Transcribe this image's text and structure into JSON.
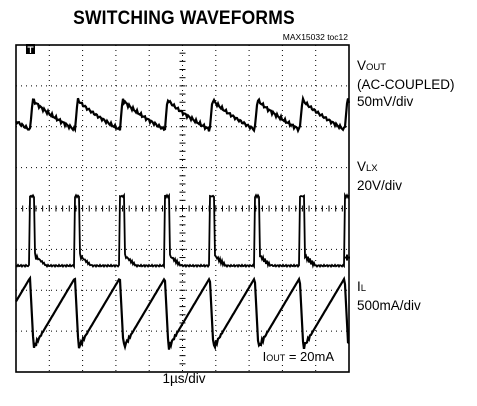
{
  "title": "SWITCHING WAVEFORMS",
  "figure_ref": "MAX15032 toc12",
  "x_scale_label": "1µs/div",
  "annotation": {
    "main": "I",
    "sub": "OUT",
    "value": " = 20mA"
  },
  "channels": [
    {
      "name_main": "V",
      "name_sub": "OUT",
      "extra": "(AC-COUPLED)",
      "scale": "50mV/div"
    },
    {
      "name_main": "V",
      "name_sub": "LX",
      "extra": "",
      "scale": "20V/div"
    },
    {
      "name_main": "I",
      "name_sub": "L",
      "extra": "",
      "scale": "500mA/div"
    }
  ],
  "colors": {
    "trace": "#000000",
    "grid": "#000000",
    "background": "#ffffff"
  },
  "chart_data": {
    "type": "line",
    "title": "SWITCHING WAVEFORMS",
    "xlabel": "1µs/div",
    "grid": "10 x 8 divisions, dotted",
    "x_unit": "µs",
    "switching_period_us": 1.35,
    "first_switch_edge_us": 0.42,
    "switch_edges_us": [
      0.42,
      1.77,
      3.12,
      4.47,
      5.82,
      7.17,
      8.52,
      9.87
    ],
    "series": [
      {
        "name": "VOUT (AC-COUPLED)",
        "scale": "50mV/div",
        "shape": "sawtooth ripple, peak after each switch edge, decaying between edges",
        "ripple_pk_pk_div": 0.75
      },
      {
        "name": "VLX",
        "scale": "20V/div",
        "shape": "pulse, high for ~0.15µs after each switch edge followed by ringing",
        "pulse_high_div": 1.7,
        "pulse_width_us": 0.15
      },
      {
        "name": "IL",
        "scale": "500mA/div",
        "shape": "triangular ramp rising to peak then sharp drop at each switch edge, ringing at valley",
        "ramp_pk_pk_div": 1.7
      }
    ]
  }
}
